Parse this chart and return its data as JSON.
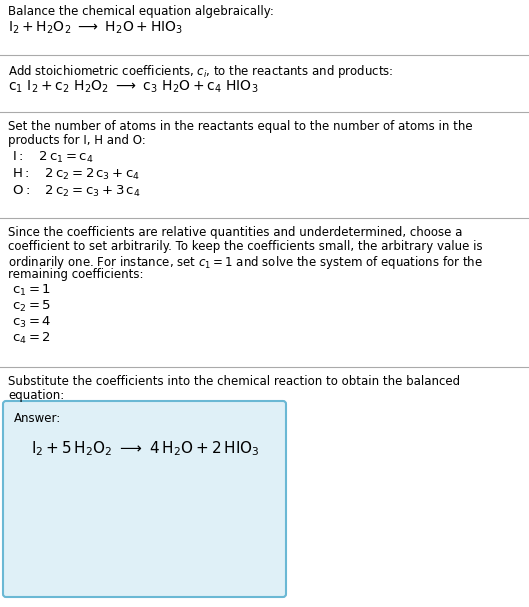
{
  "title_line1": "Balance the chemical equation algebraically:",
  "section2_intro": "Add stoichiometric coefficients, $c_i$, to the reactants and products:",
  "section3_intro_line1": "Set the number of atoms in the reactants equal to the number of atoms in the",
  "section3_intro_line2": "products for I, H and O:",
  "section4_intro_line1": "Since the coefficients are relative quantities and underdetermined, choose a",
  "section4_intro_line2": "coefficient to set arbitrarily. To keep the coefficients small, the arbitrary value is",
  "section4_intro_line3": "ordinarily one. For instance, set $c_1 = 1$ and solve the system of equations for the",
  "section4_intro_line4": "remaining coefficients:",
  "section5_intro_line1": "Substitute the coefficients into the chemical reaction to obtain the balanced",
  "section5_intro_line2": "equation:",
  "answer_label": "Answer:",
  "bg_color": "#ffffff",
  "box_bg_color": "#dff0f7",
  "box_border_color": "#6ab8d4",
  "text_color": "#000000",
  "separator_color": "#aaaaaa",
  "body_fontsize": 8.5,
  "math_fontsize": 9.5,
  "answer_math_fontsize": 11
}
